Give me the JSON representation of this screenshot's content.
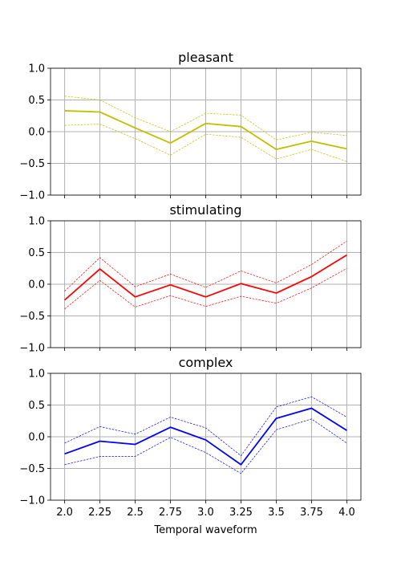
{
  "chart_data": [
    {
      "type": "line",
      "title": "pleasant",
      "xlabel": "",
      "ylabel": "",
      "x": [
        2.0,
        2.25,
        2.5,
        2.75,
        3.0,
        3.25,
        3.5,
        3.75,
        4.0
      ],
      "xtick_labels": [
        "2.0",
        "2.25",
        "2.5",
        "2.75",
        "3.0",
        "3.25",
        "3.5",
        "3.75",
        "4.0"
      ],
      "ylim": [
        -1.0,
        1.0
      ],
      "yticks": [
        -1.0,
        -0.5,
        0.0,
        0.5,
        1.0
      ],
      "ytick_labels": [
        "−1.0",
        "−0.5",
        "0.0",
        "0.5",
        "1.0"
      ],
      "grid": true,
      "color": "#bfbf00",
      "series": [
        {
          "role": "mean",
          "values": [
            0.33,
            0.31,
            0.06,
            -0.18,
            0.13,
            0.08,
            -0.28,
            -0.15,
            -0.27
          ]
        },
        {
          "role": "upper",
          "values": [
            0.56,
            0.5,
            0.22,
            0.0,
            0.29,
            0.26,
            -0.13,
            -0.01,
            -0.06
          ]
        },
        {
          "role": "lower",
          "values": [
            0.1,
            0.12,
            -0.11,
            -0.37,
            -0.04,
            -0.09,
            -0.43,
            -0.28,
            -0.47
          ]
        }
      ]
    },
    {
      "type": "line",
      "title": "stimulating",
      "xlabel": "",
      "ylabel": "",
      "x": [
        2.0,
        2.25,
        2.5,
        2.75,
        3.0,
        3.25,
        3.5,
        3.75,
        4.0
      ],
      "xtick_labels": [
        "2.0",
        "2.25",
        "2.5",
        "2.75",
        "3.0",
        "3.25",
        "3.5",
        "3.75",
        "4.0"
      ],
      "ylim": [
        -1.0,
        1.0
      ],
      "yticks": [
        -1.0,
        -0.5,
        0.0,
        0.5,
        1.0
      ],
      "ytick_labels": [
        "−1.0",
        "−0.5",
        "0.0",
        "0.5",
        "1.0"
      ],
      "grid": true,
      "color": "#ff0000",
      "series": [
        {
          "role": "mean",
          "values": [
            -0.25,
            0.24,
            -0.2,
            -0.01,
            -0.2,
            0.01,
            -0.14,
            0.12,
            0.46
          ]
        },
        {
          "role": "upper",
          "values": [
            -0.11,
            0.42,
            -0.04,
            0.16,
            -0.05,
            0.21,
            0.02,
            0.31,
            0.68
          ]
        },
        {
          "role": "lower",
          "values": [
            -0.39,
            0.06,
            -0.36,
            -0.18,
            -0.35,
            -0.19,
            -0.3,
            -0.06,
            0.25
          ]
        }
      ]
    },
    {
      "type": "line",
      "title": "complex",
      "xlabel": "Temporal waveform",
      "ylabel": "",
      "x": [
        2.0,
        2.25,
        2.5,
        2.75,
        3.0,
        3.25,
        3.5,
        3.75,
        4.0
      ],
      "xtick_labels": [
        "2.0",
        "2.25",
        "2.5",
        "2.75",
        "3.0",
        "3.25",
        "3.5",
        "3.75",
        "4.0"
      ],
      "ylim": [
        -1.0,
        1.0
      ],
      "yticks": [
        -1.0,
        -0.5,
        0.0,
        0.5,
        1.0
      ],
      "ytick_labels": [
        "−1.0",
        "−0.5",
        "0.0",
        "0.5",
        "1.0"
      ],
      "grid": true,
      "color": "#0000ff",
      "series": [
        {
          "role": "mean",
          "values": [
            -0.27,
            -0.07,
            -0.12,
            0.15,
            -0.05,
            -0.44,
            0.29,
            0.45,
            0.1
          ]
        },
        {
          "role": "upper",
          "values": [
            -0.1,
            0.16,
            0.04,
            0.31,
            0.14,
            -0.3,
            0.47,
            0.63,
            0.31
          ]
        },
        {
          "role": "lower",
          "values": [
            -0.44,
            -0.31,
            -0.31,
            -0.01,
            -0.25,
            -0.58,
            0.11,
            0.28,
            -0.1
          ]
        }
      ]
    }
  ],
  "colors": {
    "grid": "#b0b0b0",
    "axis": "#000000",
    "background": "#ffffff"
  }
}
